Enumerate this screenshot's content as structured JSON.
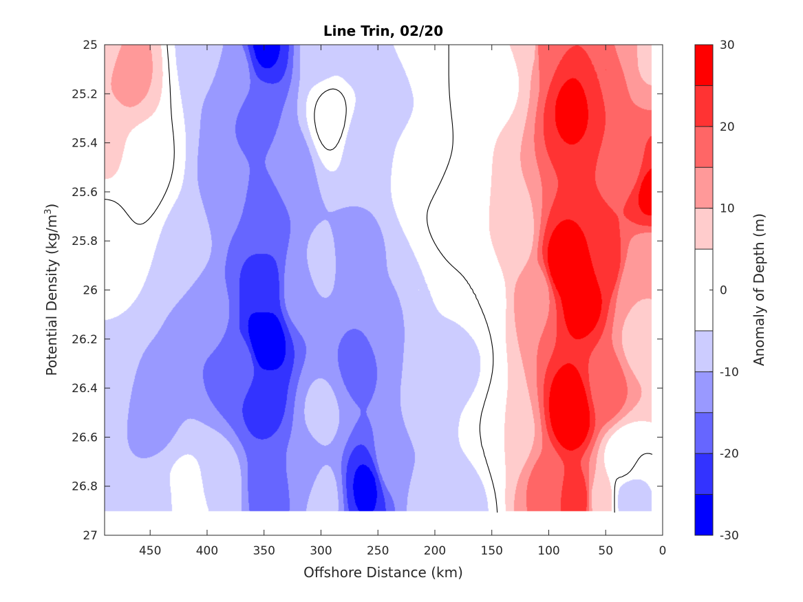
{
  "chart_data": {
    "type": "heatmap",
    "subtype": "filled-contour",
    "title": "Line Trin, 02/20",
    "xlabel": "Offshore Distance (km)",
    "ylabel_main": "Potential Density (kg/m",
    "ylabel_sup": "3",
    "ylabel_close": ")",
    "colorbar_label": "Anomaly of Depth (m)",
    "xlim": [
      490,
      0
    ],
    "x_reversed": true,
    "ylim": [
      25,
      27
    ],
    "y_reversed": true,
    "x_ticks": [
      450,
      400,
      350,
      300,
      250,
      200,
      150,
      100,
      50,
      0
    ],
    "y_ticks": [
      25,
      25.2,
      25.4,
      25.6,
      25.8,
      26,
      26.2,
      26.4,
      26.6,
      26.8,
      27
    ],
    "y_tick_labels": [
      "25",
      "25.2",
      "25.4",
      "25.6",
      "25.8",
      "26",
      "26.2",
      "26.4",
      "26.6",
      "26.8",
      "27"
    ],
    "colorbar_ticks": [
      30,
      20,
      10,
      0,
      -10,
      -20,
      -30
    ],
    "levels": [
      -30,
      -25,
      -20,
      -15,
      -10,
      -5,
      5,
      10,
      15,
      20,
      25,
      30
    ],
    "colormap": [
      {
        "range": [
          25,
          30
        ],
        "color": "#ff0000"
      },
      {
        "range": [
          20,
          25
        ],
        "color": "#ff3333"
      },
      {
        "range": [
          15,
          20
        ],
        "color": "#ff6666"
      },
      {
        "range": [
          10,
          15
        ],
        "color": "#ff9999"
      },
      {
        "range": [
          5,
          10
        ],
        "color": "#ffcccc"
      },
      {
        "range": [
          -5,
          5
        ],
        "color": "#ffffff"
      },
      {
        "range": [
          -10,
          -5
        ],
        "color": "#ccccff"
      },
      {
        "range": [
          -15,
          -10
        ],
        "color": "#9999ff"
      },
      {
        "range": [
          -20,
          -15
        ],
        "color": "#6666ff"
      },
      {
        "range": [
          -25,
          -20
        ],
        "color": "#3333ff"
      },
      {
        "range": [
          -30,
          -25
        ],
        "color": "#0000ff"
      }
    ],
    "data_extent": {
      "x": [
        490,
        10
      ],
      "y": [
        25,
        26.9
      ]
    },
    "zero_contour_color": "#000000",
    "anchors": [
      {
        "x": 490,
        "y": 25.0,
        "v": 7
      },
      {
        "x": 490,
        "y": 25.4,
        "v": 6
      },
      {
        "x": 490,
        "y": 25.8,
        "v": -2
      },
      {
        "x": 490,
        "y": 26.4,
        "v": -6
      },
      {
        "x": 490,
        "y": 26.9,
        "v": -8
      },
      {
        "x": 470,
        "y": 25.1,
        "v": 12
      },
      {
        "x": 455,
        "y": 25.5,
        "v": 3
      },
      {
        "x": 450,
        "y": 26.5,
        "v": -12
      },
      {
        "x": 440,
        "y": 26.9,
        "v": -7
      },
      {
        "x": 420,
        "y": 25.8,
        "v": -6
      },
      {
        "x": 420,
        "y": 26.9,
        "v": 0
      },
      {
        "x": 400,
        "y": 25.0,
        "v": -8
      },
      {
        "x": 395,
        "y": 26.1,
        "v": -14
      },
      {
        "x": 390,
        "y": 26.8,
        "v": -6
      },
      {
        "x": 380,
        "y": 25.6,
        "v": -14
      },
      {
        "x": 375,
        "y": 25.1,
        "v": -13
      },
      {
        "x": 370,
        "y": 26.3,
        "v": -18
      },
      {
        "x": 350,
        "y": 25.0,
        "v": -26
      },
      {
        "x": 355,
        "y": 25.3,
        "v": -16
      },
      {
        "x": 350,
        "y": 25.7,
        "v": -18
      },
      {
        "x": 350,
        "y": 26.0,
        "v": -23
      },
      {
        "x": 350,
        "y": 26.2,
        "v": -30
      },
      {
        "x": 350,
        "y": 26.45,
        "v": -22
      },
      {
        "x": 345,
        "y": 26.8,
        "v": -18
      },
      {
        "x": 325,
        "y": 25.5,
        "v": -12
      },
      {
        "x": 320,
        "y": 26.0,
        "v": -12
      },
      {
        "x": 318,
        "y": 26.75,
        "v": -14
      },
      {
        "x": 300,
        "y": 25.0,
        "v": -8
      },
      {
        "x": 290,
        "y": 25.3,
        "v": 2
      },
      {
        "x": 300,
        "y": 25.9,
        "v": -9
      },
      {
        "x": 300,
        "y": 26.5,
        "v": -9
      },
      {
        "x": 300,
        "y": 26.85,
        "v": -8
      },
      {
        "x": 270,
        "y": 25.0,
        "v": -8
      },
      {
        "x": 265,
        "y": 25.4,
        "v": -9
      },
      {
        "x": 270,
        "y": 25.9,
        "v": -13
      },
      {
        "x": 268,
        "y": 26.3,
        "v": -16
      },
      {
        "x": 260,
        "y": 26.8,
        "v": -26
      },
      {
        "x": 240,
        "y": 25.2,
        "v": -7
      },
      {
        "x": 240,
        "y": 26.1,
        "v": -11
      },
      {
        "x": 240,
        "y": 26.7,
        "v": -12
      },
      {
        "x": 210,
        "y": 25.0,
        "v": -1
      },
      {
        "x": 210,
        "y": 25.5,
        "v": -1
      },
      {
        "x": 215,
        "y": 26.0,
        "v": -5
      },
      {
        "x": 210,
        "y": 26.5,
        "v": -9
      },
      {
        "x": 205,
        "y": 26.85,
        "v": -8
      },
      {
        "x": 185,
        "y": 25.7,
        "v": 2
      },
      {
        "x": 180,
        "y": 26.3,
        "v": -7
      },
      {
        "x": 175,
        "y": 26.85,
        "v": -8
      },
      {
        "x": 165,
        "y": 25.0,
        "v": 1
      },
      {
        "x": 160,
        "y": 26.0,
        "v": 0
      },
      {
        "x": 150,
        "y": 26.6,
        "v": 0
      },
      {
        "x": 140,
        "y": 25.1,
        "v": 3
      },
      {
        "x": 130,
        "y": 25.8,
        "v": 7
      },
      {
        "x": 130,
        "y": 26.6,
        "v": 8
      },
      {
        "x": 120,
        "y": 25.0,
        "v": 8
      },
      {
        "x": 110,
        "y": 26.0,
        "v": 13
      },
      {
        "x": 105,
        "y": 26.8,
        "v": 16
      },
      {
        "x": 100,
        "y": 25.0,
        "v": 20
      },
      {
        "x": 90,
        "y": 25.9,
        "v": 28
      },
      {
        "x": 80,
        "y": 25.25,
        "v": 26
      },
      {
        "x": 70,
        "y": 26.0,
        "v": 30
      },
      {
        "x": 80,
        "y": 26.5,
        "v": 30
      },
      {
        "x": 75,
        "y": 26.85,
        "v": 23
      },
      {
        "x": 50,
        "y": 25.1,
        "v": 20
      },
      {
        "x": 50,
        "y": 25.9,
        "v": 23
      },
      {
        "x": 50,
        "y": 26.4,
        "v": 18
      },
      {
        "x": 55,
        "y": 26.85,
        "v": 8
      },
      {
        "x": 30,
        "y": 25.0,
        "v": 12
      },
      {
        "x": 30,
        "y": 25.5,
        "v": 18
      },
      {
        "x": 25,
        "y": 26.0,
        "v": 10
      },
      {
        "x": 20,
        "y": 26.2,
        "v": 8
      },
      {
        "x": 35,
        "y": 26.7,
        "v": 1
      },
      {
        "x": 30,
        "y": 26.85,
        "v": -8
      },
      {
        "x": 15,
        "y": 25.0,
        "v": 8
      },
      {
        "x": 12,
        "y": 25.6,
        "v": 26
      },
      {
        "x": 12,
        "y": 25.9,
        "v": 10
      }
    ]
  }
}
